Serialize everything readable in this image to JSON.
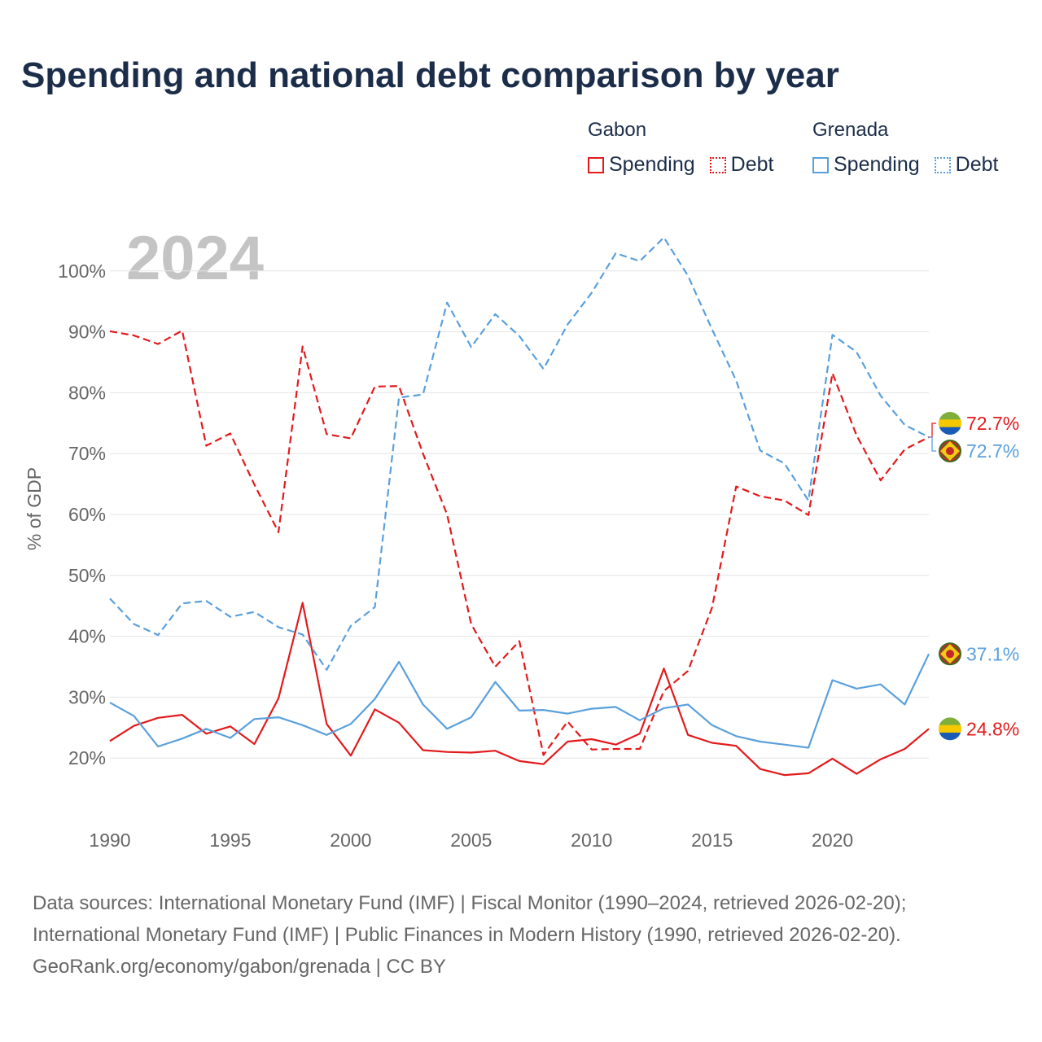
{
  "title": "Spending and national debt comparison by year",
  "legend": {
    "gabon": {
      "country": "Gabon",
      "spending_label": "Spending",
      "debt_label": "Debt"
    },
    "grenada": {
      "country": "Grenada",
      "spending_label": "Spending",
      "debt_label": "Debt"
    }
  },
  "colors": {
    "gabon": "#e31a1c",
    "grenada": "#5aa0dc",
    "grid": "#e4e4e4",
    "year_watermark": "#c4c4c4"
  },
  "chart_data": {
    "type": "line",
    "year_label": "2024",
    "ylabel": "% of GDP",
    "xlim": [
      1990,
      2024
    ],
    "ylim": [
      10,
      110
    ],
    "x_ticks": [
      "1990",
      "1995",
      "2000",
      "2005",
      "2010",
      "2015",
      "2020"
    ],
    "y_ticks": [
      "20%",
      "30%",
      "40%",
      "50%",
      "60%",
      "70%",
      "80%",
      "90%",
      "100%"
    ],
    "x": [
      1990,
      1991,
      1992,
      1993,
      1994,
      1995,
      1996,
      1997,
      1998,
      1999,
      2000,
      2001,
      2002,
      2003,
      2004,
      2005,
      2006,
      2007,
      2008,
      2009,
      2010,
      2011,
      2012,
      2013,
      2014,
      2015,
      2016,
      2017,
      2018,
      2019,
      2020,
      2021,
      2022,
      2023,
      2024
    ],
    "series": [
      {
        "name": "Gabon Spending",
        "country": "gabon",
        "style": "solid",
        "values": [
          22.8,
          25.3,
          26.6,
          27.1,
          24.0,
          25.2,
          22.3,
          29.8,
          45.5,
          25.6,
          20.4,
          28.0,
          25.8,
          21.3,
          21.0,
          20.9,
          21.2,
          19.5,
          19.0,
          22.7,
          23.1,
          22.2,
          24.0,
          34.7,
          23.8,
          22.5,
          22.0,
          18.2,
          17.2,
          17.5,
          19.9,
          17.4,
          19.8,
          21.5,
          24.8
        ]
      },
      {
        "name": "Gabon Debt",
        "country": "gabon",
        "style": "dashed",
        "values": [
          90.1,
          89.4,
          88.0,
          90.2,
          71.3,
          73.3,
          64.9,
          57.1,
          87.6,
          73.2,
          72.5,
          81.0,
          81.1,
          70.0,
          60.0,
          42.0,
          35.0,
          39.2,
          20.5,
          26.0,
          21.4,
          21.5,
          21.5,
          31.0,
          34.3,
          44.7,
          64.6,
          63.0,
          62.3,
          59.9,
          83.2,
          73.0,
          65.6,
          70.7,
          72.7
        ]
      },
      {
        "name": "Grenada Spending",
        "country": "grenada",
        "style": "solid",
        "values": [
          29.1,
          26.9,
          21.9,
          23.2,
          24.8,
          23.3,
          26.4,
          26.7,
          25.4,
          23.8,
          25.6,
          29.7,
          35.8,
          28.8,
          24.8,
          26.7,
          32.5,
          27.8,
          27.9,
          27.3,
          28.1,
          28.4,
          26.2,
          28.2,
          28.8,
          25.4,
          23.6,
          22.7,
          22.2,
          21.7,
          32.8,
          31.4,
          32.1,
          28.8,
          37.1
        ]
      },
      {
        "name": "Grenada Debt",
        "country": "grenada",
        "style": "dashed",
        "values": [
          46.2,
          42.0,
          40.2,
          45.4,
          45.8,
          43.2,
          44.0,
          41.5,
          40.3,
          34.5,
          41.7,
          44.8,
          79.2,
          79.7,
          94.8,
          87.5,
          92.9,
          89.3,
          83.9,
          91.2,
          96.4,
          102.9,
          101.6,
          105.5,
          99.2,
          90.4,
          82.0,
          70.5,
          68.4,
          62.3,
          89.5,
          86.7,
          79.5,
          74.7,
          72.7
        ]
      }
    ],
    "end_labels": [
      {
        "series": "Gabon Debt",
        "label": "72.7%",
        "flag": "gabon"
      },
      {
        "series": "Grenada Debt",
        "label": "72.7%",
        "flag": "grenada"
      },
      {
        "series": "Grenada Spending",
        "label": "37.1%",
        "flag": "grenada"
      },
      {
        "series": "Gabon Spending",
        "label": "24.8%",
        "flag": "gabon"
      }
    ]
  },
  "footer": {
    "line1": "Data sources: International Monetary Fund (IMF) | Fiscal Monitor (1990–2024, retrieved 2026-02-20);",
    "line2": "International Monetary Fund (IMF) | Public Finances in Modern History (1990, retrieved 2026-02-20).",
    "line3": "GeoRank.org/economy/gabon/grenada | CC BY"
  }
}
